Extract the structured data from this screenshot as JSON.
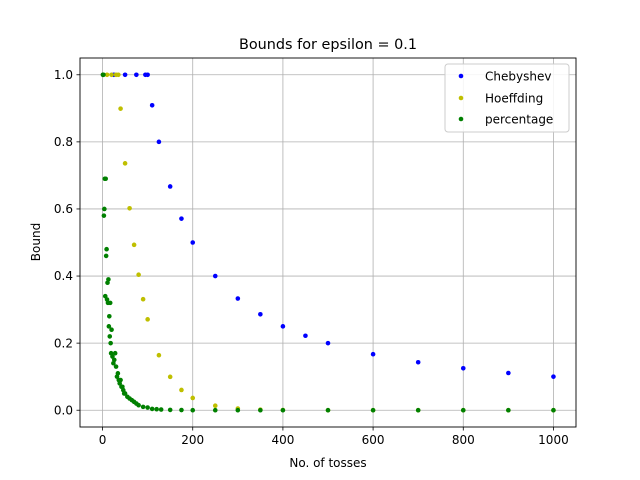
{
  "chart_data": {
    "type": "scatter",
    "title": "Bounds for epsilon = 0.1",
    "xlabel": "No. of tosses",
    "ylabel": "Bound",
    "xlim": [
      -50,
      1050
    ],
    "ylim": [
      -0.05,
      1.05
    ],
    "x_ticks": [
      0,
      200,
      400,
      600,
      800,
      1000
    ],
    "y_ticks": [
      0.0,
      0.2,
      0.4,
      0.6,
      0.8,
      1.0
    ],
    "x_tick_labels": [
      "0",
      "200",
      "400",
      "600",
      "800",
      "1000"
    ],
    "y_tick_labels": [
      "0.0",
      "0.2",
      "0.4",
      "0.6",
      "0.8",
      "1.0"
    ],
    "grid": true,
    "legend_position": "top-right",
    "series": [
      {
        "name": "Chebyshev",
        "color": "#0000ff",
        "x": [
          1,
          25,
          50,
          75,
          95,
          100,
          110,
          125,
          150,
          175,
          200,
          250,
          300,
          350,
          400,
          450,
          500,
          600,
          700,
          800,
          900,
          1000
        ],
        "y": [
          1.0,
          1.0,
          1.0,
          1.0,
          1.0,
          1.0,
          0.909,
          0.8,
          0.667,
          0.571,
          0.5,
          0.4,
          0.333,
          0.286,
          0.25,
          0.222,
          0.2,
          0.167,
          0.143,
          0.125,
          0.111,
          0.1
        ]
      },
      {
        "name": "Hoeffding",
        "color": "#bfbf00",
        "x": [
          1,
          10,
          20,
          30,
          35,
          40,
          50,
          60,
          70,
          80,
          90,
          100,
          125,
          150,
          175,
          200,
          250,
          300,
          350,
          400,
          500,
          600,
          700,
          800,
          900,
          1000
        ],
        "y": [
          1.0,
          1.0,
          1.0,
          1.0,
          1.0,
          0.899,
          0.736,
          0.602,
          0.493,
          0.404,
          0.331,
          0.271,
          0.164,
          0.0996,
          0.0604,
          0.0366,
          0.0135,
          0.005,
          0.0018,
          0.0007,
          0.0001,
          0.0,
          0.0,
          0.0,
          0.0,
          0.0
        ]
      },
      {
        "name": "percentage",
        "color": "#008000",
        "x": [
          1,
          2,
          3,
          4,
          5,
          6,
          7,
          8,
          9,
          10,
          11,
          12,
          13,
          14,
          15,
          16,
          17,
          18,
          19,
          20,
          22,
          24,
          26,
          28,
          30,
          32,
          34,
          36,
          38,
          40,
          42,
          44,
          46,
          48,
          50,
          55,
          60,
          65,
          70,
          75,
          80,
          90,
          100,
          110,
          120,
          130,
          150,
          175,
          200,
          250,
          300,
          350,
          400,
          500,
          600,
          700,
          800,
          900,
          1000
        ],
        "y": [
          1.0,
          1.0,
          0.58,
          0.6,
          0.69,
          0.34,
          0.69,
          0.46,
          0.48,
          0.33,
          0.38,
          0.32,
          0.39,
          0.25,
          0.28,
          0.22,
          0.32,
          0.2,
          0.17,
          0.24,
          0.16,
          0.14,
          0.15,
          0.17,
          0.13,
          0.1,
          0.11,
          0.09,
          0.08,
          0.09,
          0.07,
          0.07,
          0.06,
          0.05,
          0.05,
          0.04,
          0.035,
          0.03,
          0.025,
          0.02,
          0.015,
          0.01,
          0.008,
          0.004,
          0.003,
          0.002,
          0.001,
          0.0005,
          0.0,
          0.0,
          0.0,
          0.0,
          0.0,
          0.0,
          0.0,
          0.0,
          0.0,
          0.0,
          0.0
        ]
      }
    ]
  }
}
